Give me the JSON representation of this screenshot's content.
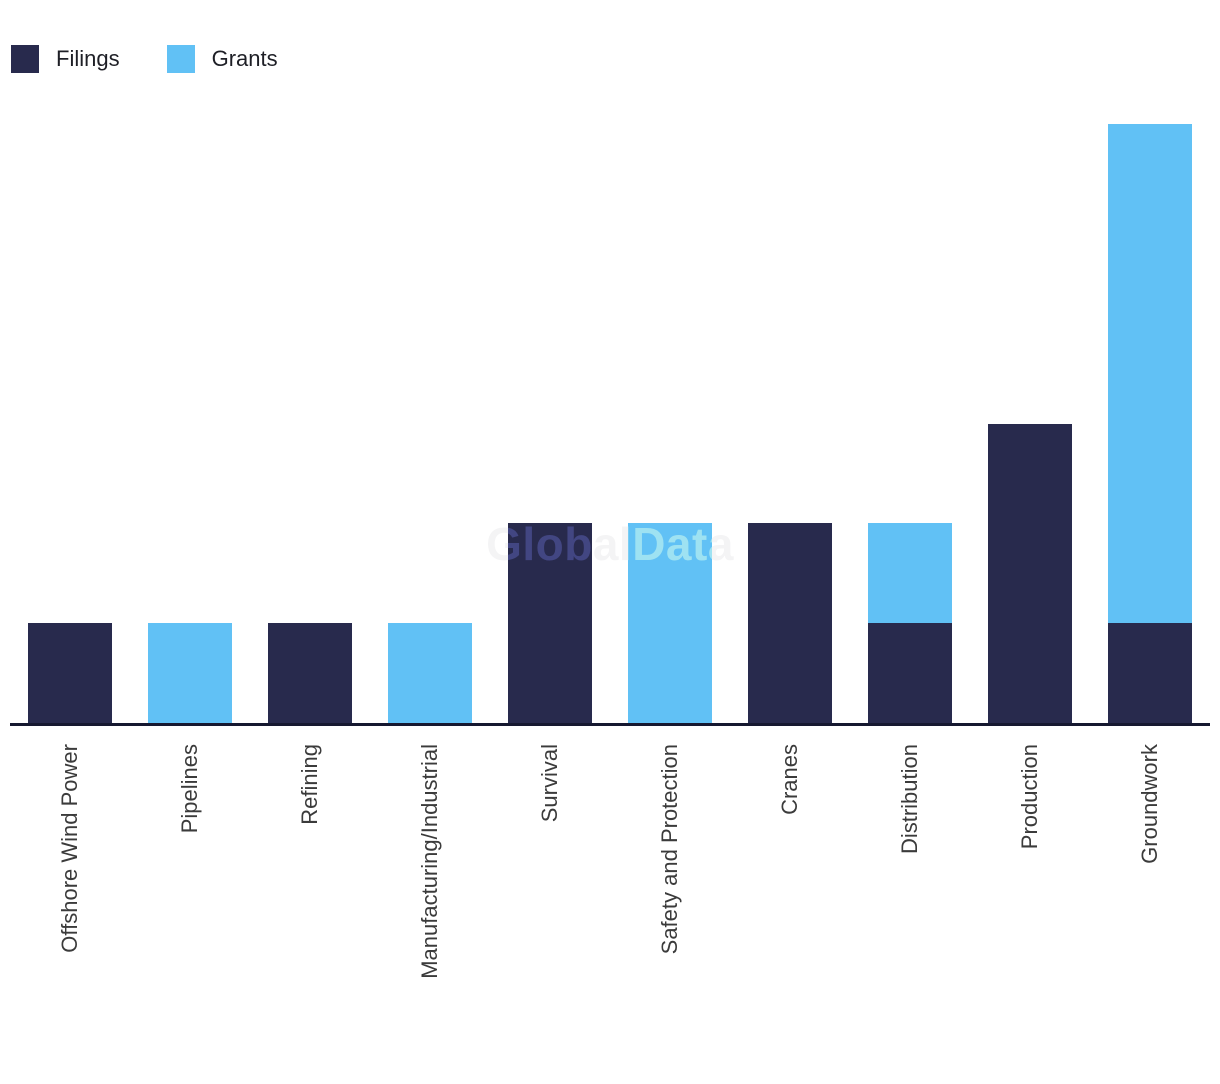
{
  "chart_data": {
    "type": "bar",
    "stacked": true,
    "orientation": "vertical",
    "title": "",
    "xlabel": "",
    "ylabel": "",
    "ylim": [
      0,
      6
    ],
    "grid": false,
    "y_axis_visible": false,
    "legend_position": "top-left",
    "watermark": "GlobalData",
    "categories": [
      "Offshore Wind Power",
      "Pipelines",
      "Refining",
      "Manufacturing/Industrial",
      "Survival",
      "Safety and Protection",
      "Cranes",
      "Distribution",
      "Production",
      "Groundwork"
    ],
    "series": [
      {
        "name": "Filings",
        "color": "#282a4d",
        "values": [
          1,
          0,
          1,
          0,
          2,
          0,
          2,
          1,
          3,
          1
        ]
      },
      {
        "name": "Grants",
        "color": "#61c1f5",
        "values": [
          0,
          1,
          0,
          1,
          0,
          2,
          0,
          1,
          0,
          5
        ]
      }
    ],
    "colors": {
      "axis_line": "#161830",
      "category_label": "#3b3b3b",
      "legend_text": "#1e1f26",
      "background": "#ffffff"
    }
  }
}
